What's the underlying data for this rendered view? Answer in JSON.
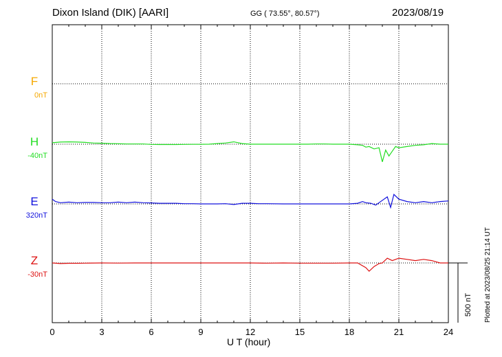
{
  "header": {
    "station": "Dixon Island (DIK)  [AARI]",
    "coords": "GG ( 73.55°,  80.57°)",
    "date": "2023/08/19"
  },
  "footer": {
    "plotted": "Plotted at 2023/08/25 21:14 UT"
  },
  "chart_data": {
    "type": "line",
    "xlabel": "U T (hour)",
    "xlim": [
      0,
      24
    ],
    "x_ticks": [
      0,
      3,
      6,
      9,
      12,
      15,
      18,
      21,
      24
    ],
    "scale_bar": "500 nT",
    "y_unit_per_px": 5.814,
    "grid": true,
    "series": [
      {
        "name": "F",
        "offset": "0nT",
        "color": "#f5a800",
        "values": []
      },
      {
        "name": "H",
        "offset": "-40nT",
        "color": "#22dd22",
        "x": [
          0,
          0.5,
          1,
          1.5,
          2,
          2.5,
          3,
          3.5,
          4,
          4.5,
          5,
          5.5,
          6,
          6.5,
          7,
          7.5,
          8,
          8.5,
          9,
          9.5,
          10,
          10.5,
          11,
          11.5,
          12,
          12.5,
          13,
          13.5,
          14,
          14.5,
          15,
          15.5,
          16,
          16.5,
          17,
          17.5,
          18,
          18.5,
          18.8,
          19,
          19.2,
          19.5,
          19.8,
          20,
          20.2,
          20.4,
          20.6,
          20.8,
          21,
          21.5,
          22,
          22.5,
          23,
          23.5,
          24
        ],
        "values": [
          12,
          18,
          20,
          18,
          15,
          10,
          8,
          5,
          4,
          2,
          2,
          2,
          -2,
          -3,
          -3,
          -3,
          -2,
          -1,
          -1,
          0,
          5,
          10,
          20,
          5,
          0,
          0,
          0,
          0,
          0,
          0,
          0,
          0,
          2,
          2,
          0,
          0,
          0,
          -5,
          -10,
          -25,
          -20,
          -40,
          -30,
          -150,
          -50,
          -100,
          -60,
          -20,
          -30,
          -20,
          -10,
          -5,
          5,
          0,
          0
        ]
      },
      {
        "name": "E",
        "offset": "320nT",
        "color": "#1010dd",
        "x": [
          0,
          0.2,
          0.5,
          1,
          1.5,
          2,
          2.5,
          3,
          3.5,
          4,
          4.5,
          5,
          5.5,
          6,
          6.5,
          7,
          7.5,
          8,
          8.5,
          9,
          9.5,
          10,
          10.5,
          11,
          11.5,
          12,
          12.5,
          13,
          14,
          15,
          16,
          17,
          18,
          18.5,
          18.8,
          19,
          19.3,
          19.6,
          20,
          20.3,
          20.5,
          20.7,
          21,
          21.5,
          22,
          22.5,
          23,
          23.5,
          24
        ],
        "values": [
          40,
          20,
          10,
          15,
          10,
          12,
          12,
          10,
          10,
          15,
          10,
          15,
          10,
          8,
          5,
          5,
          5,
          2,
          2,
          0,
          0,
          0,
          2,
          -5,
          5,
          5,
          2,
          2,
          0,
          0,
          0,
          0,
          0,
          5,
          20,
          10,
          5,
          -10,
          30,
          60,
          -30,
          80,
          40,
          20,
          10,
          20,
          10,
          20,
          25
        ]
      },
      {
        "name": "Z",
        "offset": "-30nT",
        "color": "#dd1010",
        "x": [
          0,
          0.5,
          1,
          1.5,
          2,
          3,
          4,
          5,
          6,
          7,
          8,
          9,
          10,
          11,
          12,
          13,
          14,
          15,
          16,
          17,
          18,
          18.5,
          19,
          19.2,
          19.5,
          19.8,
          20,
          20.3,
          20.6,
          21,
          21.5,
          22,
          22.5,
          23,
          23.5,
          24
        ],
        "values": [
          0,
          -5,
          -3,
          -3,
          -2,
          0,
          -1,
          0,
          0,
          0,
          0,
          0,
          0,
          0,
          0,
          -2,
          0,
          -2,
          -2,
          -2,
          0,
          0,
          -40,
          -70,
          -30,
          -5,
          0,
          40,
          20,
          40,
          30,
          20,
          30,
          20,
          0,
          0
        ]
      }
    ]
  }
}
